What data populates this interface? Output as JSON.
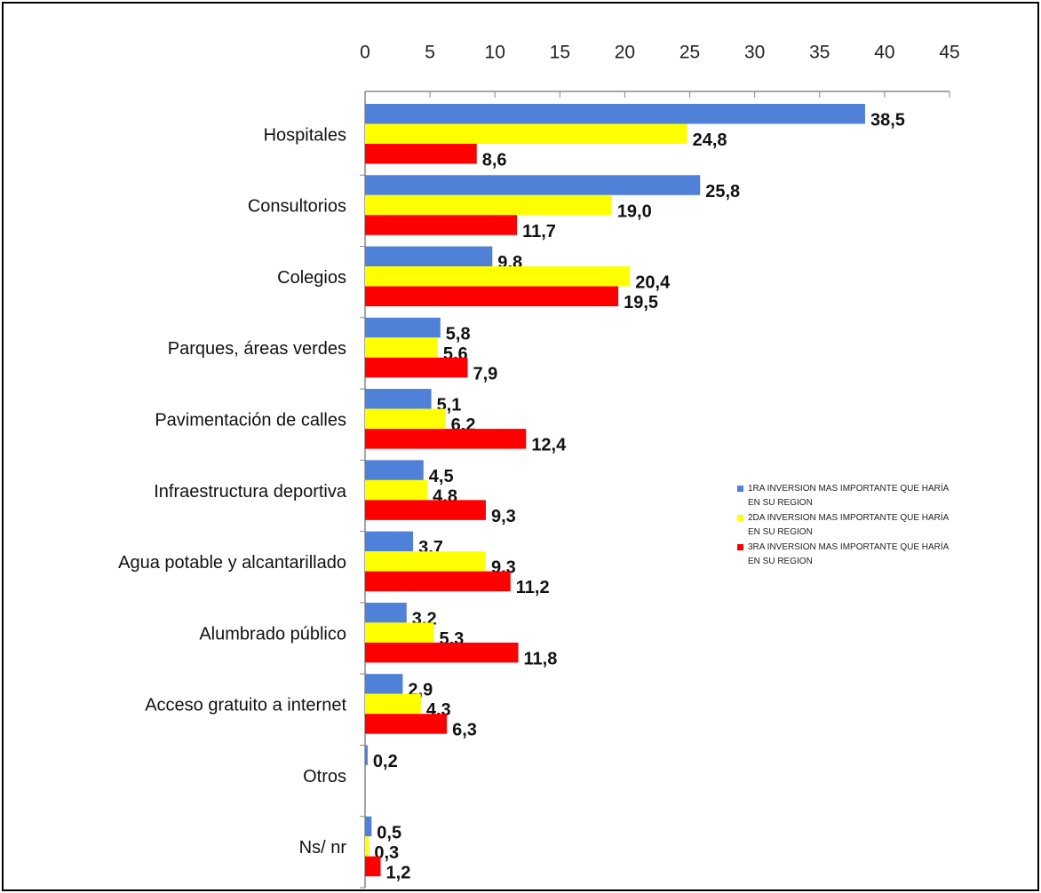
{
  "chart_data": {
    "type": "bar",
    "orientation": "horizontal",
    "categories": [
      "Hospitales",
      "Consultorios",
      "Colegios",
      "Parques, áreas verdes",
      "Pavimentación de calles",
      "Infraestructura deportiva",
      "Agua potable y alcantarillado",
      "Alumbrado público",
      "Acceso gratuito a internet",
      "Otros",
      "Ns/ nr"
    ],
    "series": [
      {
        "name": "1RA INVERSION MAS IMPORTANTE QUE HARÍA EN SU REGION",
        "color": "#4f81d8",
        "values": [
          38.5,
          25.8,
          9.8,
          5.8,
          5.1,
          4.5,
          3.7,
          3.2,
          2.9,
          0.2,
          0.5
        ],
        "value_labels": [
          "38,5",
          "25,8",
          "9,8",
          "5,8",
          "5,1",
          "4,5",
          "3,7",
          "3,2",
          "2,9",
          "0,2",
          "0,5"
        ]
      },
      {
        "name": "2DA INVERSION MAS IMPORTANTE QUE HARÍA EN SU REGION",
        "color": "#ffff00",
        "values": [
          24.8,
          19.0,
          20.4,
          5.6,
          6.2,
          4.8,
          9.3,
          5.3,
          4.3,
          null,
          0.3
        ],
        "value_labels": [
          "24,8",
          "19,0",
          "20,4",
          "5,6",
          "6,2",
          "4,8",
          "9,3",
          "5,3",
          "4,3",
          null,
          "0,3"
        ]
      },
      {
        "name": "3RA INVERSION MAS IMPORTANTE QUE HARÍA EN SU REGION",
        "color": "#ff0000",
        "values": [
          8.6,
          11.7,
          19.5,
          7.9,
          12.4,
          9.3,
          11.2,
          11.8,
          6.3,
          null,
          1.2
        ],
        "value_labels": [
          "8,6",
          "11,7",
          "19,5",
          "7,9",
          "12,4",
          "9,3",
          "11,2",
          "11,8",
          "6,3",
          null,
          "1,2"
        ]
      }
    ],
    "xlim": [
      0,
      45
    ],
    "xticks": [
      0,
      5,
      10,
      15,
      20,
      25,
      30,
      35,
      40,
      45
    ],
    "legend": "right"
  }
}
